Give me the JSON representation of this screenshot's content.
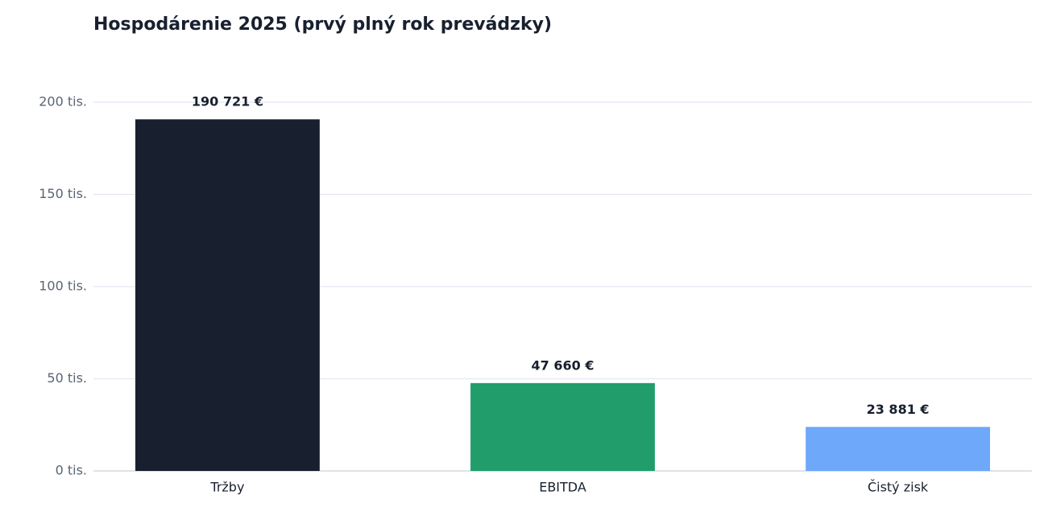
{
  "chart_data": {
    "type": "bar",
    "title": "Hospodárenie 2025 (prvý plný rok prevádzky)",
    "categories": [
      "Tržby",
      "EBITDA",
      "Čistý zisk"
    ],
    "values": [
      190721,
      47660,
      23881
    ],
    "value_labels": [
      "190 721 €",
      "47 660 €",
      "23 881 €"
    ],
    "colors": [
      "#18202f",
      "#219d6b",
      "#6ea8fb"
    ],
    "ylim": [
      0,
      220000
    ],
    "yticks": [
      {
        "value": 0,
        "label": "0 tis."
      },
      {
        "value": 50000,
        "label": "50 tis."
      },
      {
        "value": 100000,
        "label": "100 tis."
      },
      {
        "value": 150000,
        "label": "150 tis."
      },
      {
        "value": 200000,
        "label": "200 tis."
      }
    ],
    "grid": true
  }
}
